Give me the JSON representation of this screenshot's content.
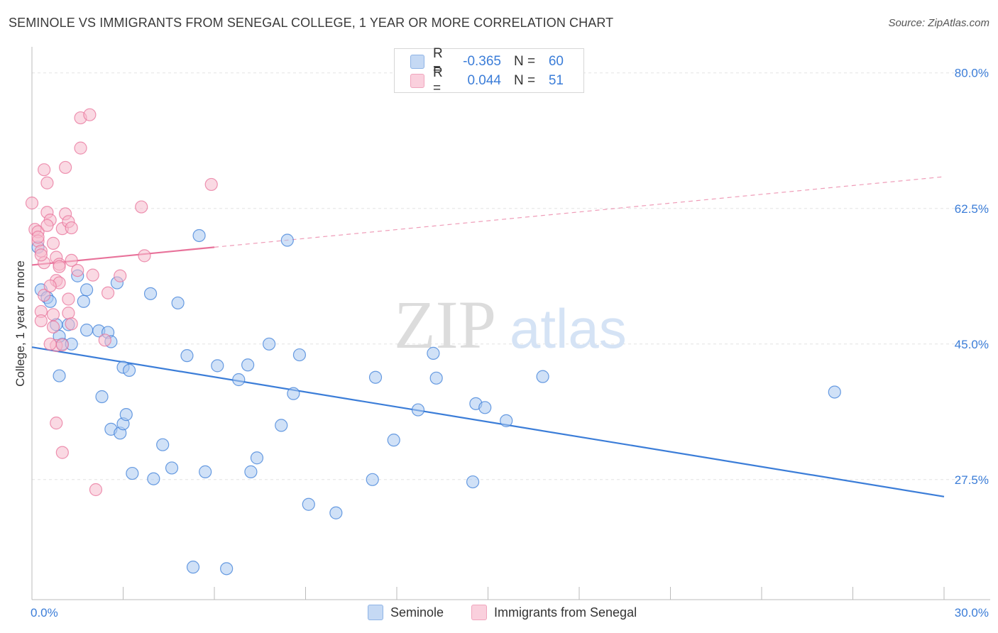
{
  "title": "SEMINOLE VS IMMIGRANTS FROM SENEGAL COLLEGE, 1 YEAR OR MORE CORRELATION CHART",
  "source": "Source: ZipAtlas.com",
  "watermark": {
    "zip": "ZIP",
    "atlas": "atlas"
  },
  "colors": {
    "blue": "#3b7dd8",
    "blue_fill": "#a9c8f0",
    "pink": "#e8729a",
    "pink_fill": "#f6b9cc",
    "grid": "#e3e3e3"
  },
  "legend": {
    "rows": [
      {
        "r_label": "R =",
        "r_value": "-0.365",
        "n_label": "N =",
        "n_value": "60"
      },
      {
        "r_label": "R =",
        "r_value": "0.044",
        "n_label": "N =",
        "n_value": "51"
      }
    ]
  },
  "bottom_legend": {
    "series1": "Seminole",
    "series2": "Immigrants from Senegal"
  },
  "chart_data": {
    "type": "scatter",
    "xlabel": "",
    "ylabel": "College, 1 year or more",
    "xlim": [
      0,
      30
    ],
    "ylim": [
      12,
      83
    ],
    "x_tick_labels": [
      "0.0%",
      "30.0%"
    ],
    "y_ticks": [
      27.5,
      45.0,
      62.5,
      80.0
    ],
    "y_tick_labels": [
      "27.5%",
      "45.0%",
      "62.5%",
      "80.0%"
    ],
    "grid": "horizontal dashed",
    "series": [
      {
        "name": "Seminole",
        "color": "#3b7dd8",
        "trend": {
          "x": [
            0,
            30
          ],
          "y": [
            44.6,
            25.3
          ],
          "style": "solid"
        },
        "points": [
          [
            0.2,
            57.5
          ],
          [
            0.3,
            52.0
          ],
          [
            0.5,
            51.0
          ],
          [
            0.6,
            50.5
          ],
          [
            1.0,
            45.0
          ],
          [
            0.9,
            46.0
          ],
          [
            0.8,
            47.5
          ],
          [
            1.3,
            45.0
          ],
          [
            1.2,
            47.5
          ],
          [
            1.5,
            53.8
          ],
          [
            1.8,
            52.0
          ],
          [
            1.7,
            50.5
          ],
          [
            2.2,
            46.7
          ],
          [
            2.5,
            46.5
          ],
          [
            2.6,
            45.3
          ],
          [
            2.8,
            52.9
          ],
          [
            3.0,
            42.0
          ],
          [
            3.2,
            41.6
          ],
          [
            1.8,
            46.8
          ],
          [
            0.9,
            40.9
          ],
          [
            2.3,
            38.2
          ],
          [
            2.6,
            34.0
          ],
          [
            2.9,
            33.5
          ],
          [
            3.0,
            34.7
          ],
          [
            3.1,
            35.9
          ],
          [
            3.3,
            28.3
          ],
          [
            3.9,
            51.5
          ],
          [
            4.0,
            27.6
          ],
          [
            4.3,
            32.0
          ],
          [
            4.6,
            29.0
          ],
          [
            4.8,
            50.3
          ],
          [
            5.1,
            43.5
          ],
          [
            5.5,
            59.0
          ],
          [
            5.7,
            28.5
          ],
          [
            6.1,
            42.2
          ],
          [
            6.8,
            40.4
          ],
          [
            7.1,
            42.3
          ],
          [
            7.2,
            28.5
          ],
          [
            7.4,
            30.3
          ],
          [
            7.8,
            45.0
          ],
          [
            8.2,
            34.5
          ],
          [
            8.4,
            58.4
          ],
          [
            8.6,
            38.6
          ],
          [
            8.8,
            43.6
          ],
          [
            9.1,
            24.3
          ],
          [
            10.0,
            23.2
          ],
          [
            11.2,
            27.5
          ],
          [
            11.3,
            40.7
          ],
          [
            11.9,
            32.6
          ],
          [
            12.7,
            36.5
          ],
          [
            13.2,
            43.8
          ],
          [
            13.3,
            40.6
          ],
          [
            14.6,
            37.3
          ],
          [
            14.5,
            27.2
          ],
          [
            14.9,
            36.8
          ],
          [
            15.6,
            35.1
          ],
          [
            16.8,
            40.8
          ],
          [
            26.4,
            38.8
          ],
          [
            5.3,
            16.2
          ],
          [
            6.4,
            16.0
          ]
        ]
      },
      {
        "name": "Immigrants from Senegal",
        "color": "#e8729a",
        "trend": {
          "x": [
            0,
            6.0
          ],
          "y": [
            55.2,
            57.5
          ],
          "style": "solid",
          "extended": {
            "x": [
              6.0,
              30
            ],
            "y": [
              57.5,
              66.6
            ],
            "style": "dashed"
          }
        },
        "points": [
          [
            0.0,
            63.2
          ],
          [
            0.1,
            59.8
          ],
          [
            0.2,
            59.5
          ],
          [
            0.2,
            58.3
          ],
          [
            0.3,
            57.0
          ],
          [
            0.4,
            55.5
          ],
          [
            0.5,
            62.0
          ],
          [
            0.6,
            61.0
          ],
          [
            0.5,
            60.3
          ],
          [
            0.7,
            58.0
          ],
          [
            0.8,
            56.2
          ],
          [
            0.9,
            55.3
          ],
          [
            1.0,
            59.9
          ],
          [
            1.1,
            61.8
          ],
          [
            1.2,
            60.8
          ],
          [
            1.3,
            60.0
          ],
          [
            1.3,
            55.8
          ],
          [
            0.4,
            67.5
          ],
          [
            0.5,
            65.8
          ],
          [
            1.1,
            67.8
          ],
          [
            1.6,
            74.2
          ],
          [
            1.9,
            74.6
          ],
          [
            1.6,
            70.3
          ],
          [
            0.8,
            53.2
          ],
          [
            0.9,
            52.9
          ],
          [
            0.4,
            51.3
          ],
          [
            0.3,
            49.2
          ],
          [
            0.7,
            48.8
          ],
          [
            1.2,
            49.0
          ],
          [
            1.2,
            50.8
          ],
          [
            0.7,
            47.2
          ],
          [
            0.8,
            44.8
          ],
          [
            1.0,
            44.9
          ],
          [
            1.5,
            54.5
          ],
          [
            2.0,
            53.9
          ],
          [
            2.5,
            51.6
          ],
          [
            2.9,
            53.8
          ],
          [
            3.6,
            62.7
          ],
          [
            3.7,
            56.4
          ],
          [
            5.9,
            65.6
          ],
          [
            0.6,
            45.0
          ],
          [
            0.8,
            34.8
          ],
          [
            1.0,
            31.0
          ],
          [
            2.1,
            26.2
          ],
          [
            2.4,
            45.5
          ],
          [
            0.3,
            48.0
          ],
          [
            1.3,
            47.6
          ],
          [
            0.6,
            52.5
          ],
          [
            0.3,
            56.5
          ],
          [
            0.2,
            58.8
          ],
          [
            0.9,
            55.0
          ]
        ]
      }
    ]
  }
}
